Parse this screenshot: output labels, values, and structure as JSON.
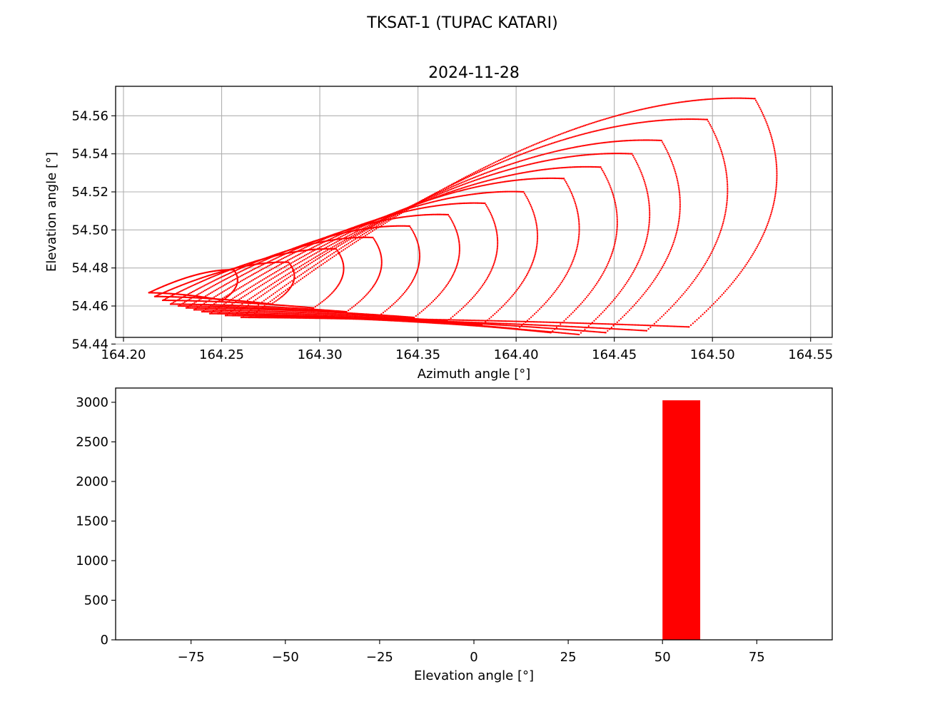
{
  "figure": {
    "suptitle": "TKSAT-1 (TUPAC KATARI)"
  },
  "colors": {
    "series": "#ff0000",
    "grid": "#b0b0b0",
    "axes": "#000000",
    "background": "#ffffff"
  },
  "chart_data": [
    {
      "type": "scatter",
      "title": "2024-11-28",
      "xlabel": "Azimuth angle [°]",
      "ylabel": "Elevation angle [°]",
      "xlim": [
        164.196,
        164.561
      ],
      "ylim": [
        54.4435,
        54.5755
      ],
      "grid": true,
      "marker": "dotted",
      "xticks": [
        164.2,
        164.25,
        164.3,
        164.35,
        164.4,
        164.45,
        164.5,
        164.55
      ],
      "xtick_labels": [
        "164.20",
        "164.25",
        "164.30",
        "164.35",
        "164.40",
        "164.45",
        "164.50",
        "164.55"
      ],
      "yticks": [
        54.44,
        54.46,
        54.48,
        54.5,
        54.52,
        54.54,
        54.56
      ],
      "ytick_labels": [
        "54.44",
        "54.46",
        "54.48",
        "54.50",
        "54.52",
        "54.54",
        "54.56"
      ],
      "loops": [
        {
          "left_az": 164.213,
          "right_az": 164.26,
          "left_el": 54.467,
          "top_el": 54.479,
          "bottom_el": 54.463
        },
        {
          "left_az": 164.216,
          "right_az": 164.29,
          "left_el": 54.465,
          "top_el": 54.483,
          "bottom_el": 54.461
        },
        {
          "left_az": 164.22,
          "right_az": 164.316,
          "left_el": 54.463,
          "top_el": 54.49,
          "bottom_el": 54.459
        },
        {
          "left_az": 164.224,
          "right_az": 164.336,
          "left_el": 54.461,
          "top_el": 54.496,
          "bottom_el": 54.457
        },
        {
          "left_az": 164.228,
          "right_az": 164.356,
          "left_el": 54.46,
          "top_el": 54.502,
          "bottom_el": 54.455
        },
        {
          "left_az": 164.232,
          "right_az": 164.377,
          "left_el": 54.459,
          "top_el": 54.508,
          "bottom_el": 54.454
        },
        {
          "left_az": 164.236,
          "right_az": 164.397,
          "left_el": 54.458,
          "top_el": 54.514,
          "bottom_el": 54.452
        },
        {
          "left_az": 164.24,
          "right_az": 164.418,
          "left_el": 54.457,
          "top_el": 54.52,
          "bottom_el": 54.45
        },
        {
          "left_az": 164.244,
          "right_az": 164.44,
          "left_el": 54.456,
          "top_el": 54.527,
          "bottom_el": 54.448
        },
        {
          "left_az": 164.248,
          "right_az": 164.46,
          "left_el": 54.456,
          "top_el": 54.533,
          "bottom_el": 54.446
        },
        {
          "left_az": 164.252,
          "right_az": 164.477,
          "left_el": 54.455,
          "top_el": 54.54,
          "bottom_el": 54.445
        },
        {
          "left_az": 164.256,
          "right_az": 164.493,
          "left_el": 54.455,
          "top_el": 54.547,
          "bottom_el": 54.446
        },
        {
          "left_az": 164.26,
          "right_az": 164.518,
          "left_el": 54.454,
          "top_el": 54.558,
          "bottom_el": 54.447
        },
        {
          "left_az": 164.264,
          "right_az": 164.544,
          "left_el": 54.454,
          "top_el": 54.569,
          "bottom_el": 54.449
        }
      ]
    },
    {
      "type": "bar",
      "title": "",
      "xlabel": "Elevation angle [°]",
      "ylabel": "",
      "xlim": [
        -95,
        95
      ],
      "ylim": [
        0,
        3180
      ],
      "grid": false,
      "bars": [
        {
          "x0": 50,
          "x1": 60,
          "value": 3025
        }
      ],
      "xticks": [
        -75,
        -50,
        -25,
        0,
        25,
        50,
        75
      ],
      "xtick_labels": [
        "−75",
        "−50",
        "−25",
        "0",
        "25",
        "50",
        "75"
      ],
      "yticks": [
        0,
        500,
        1000,
        1500,
        2000,
        2500,
        3000
      ],
      "ytick_labels": [
        "0",
        "500",
        "1000",
        "1500",
        "2000",
        "2500",
        "3000"
      ]
    }
  ]
}
